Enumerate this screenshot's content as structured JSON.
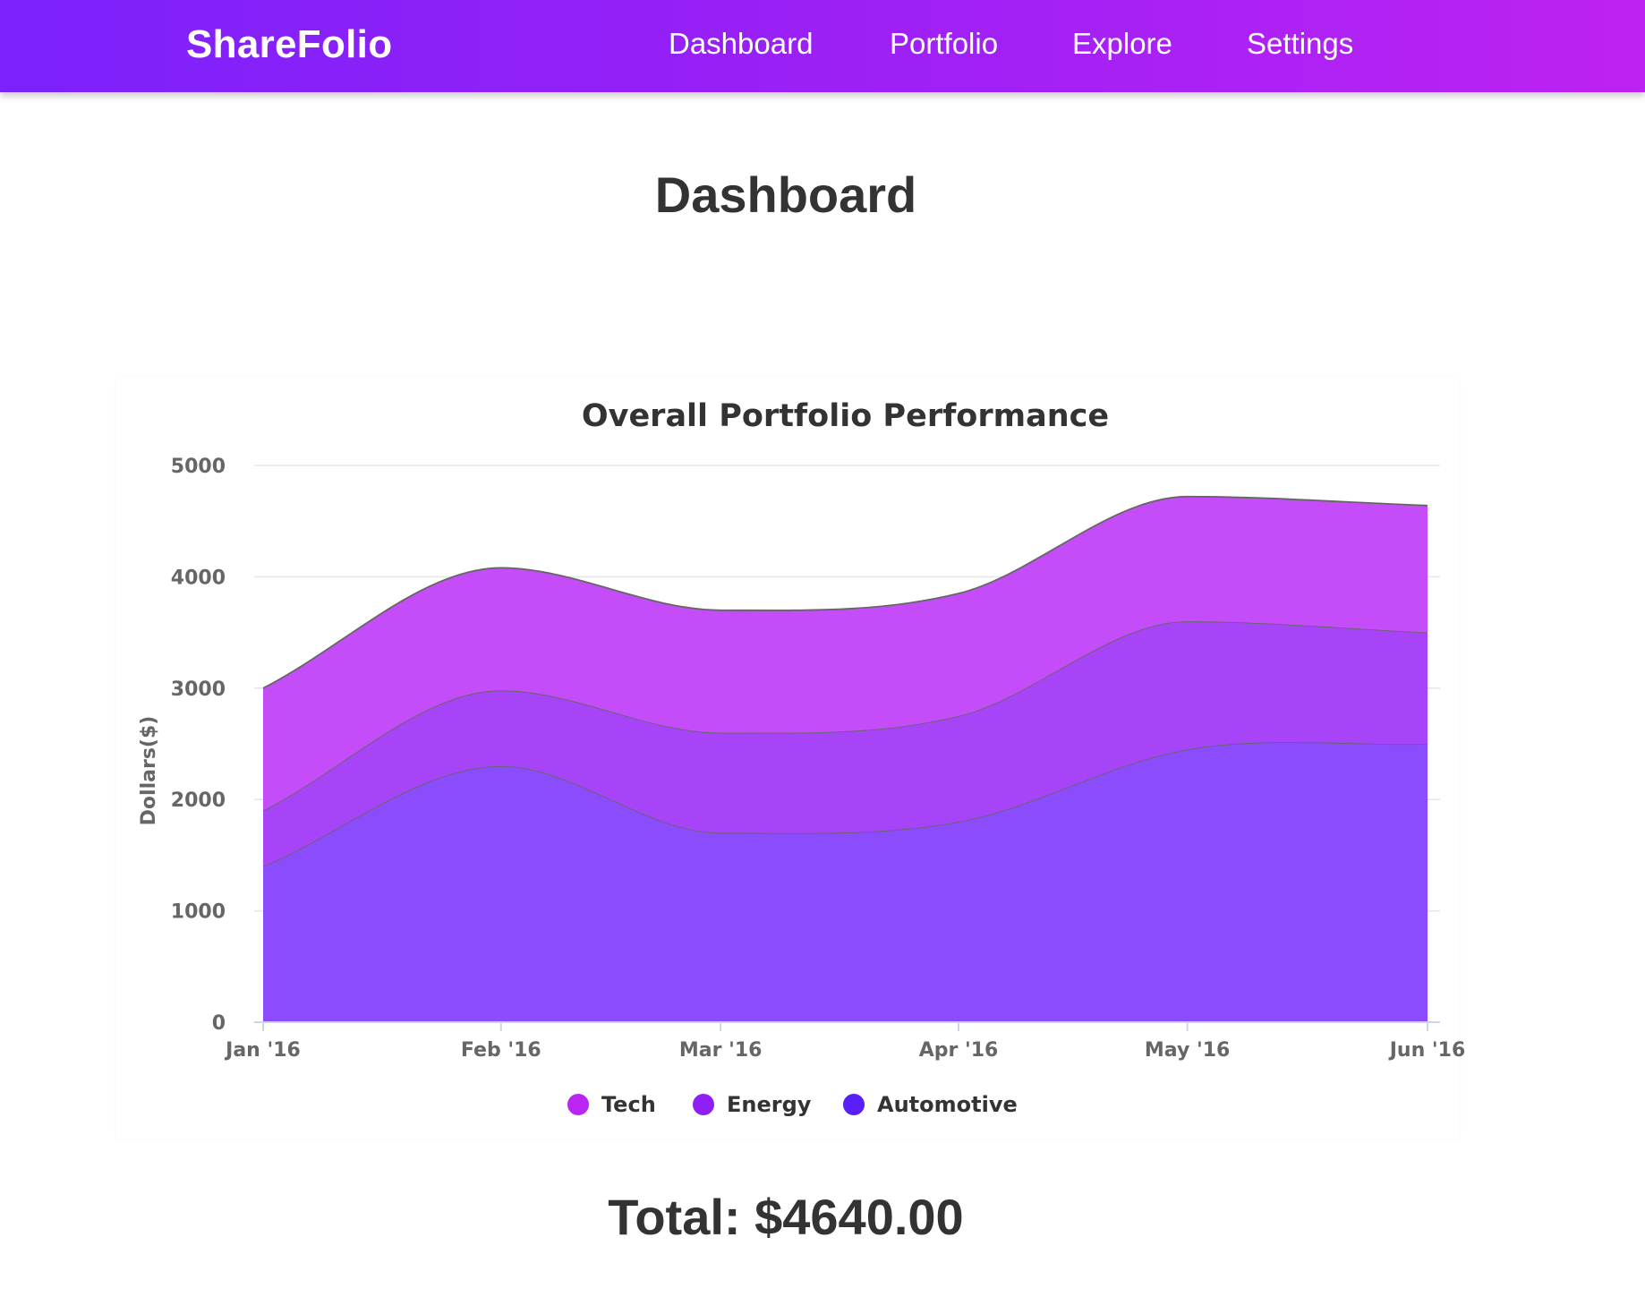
{
  "navbar": {
    "brand": "ShareFolio",
    "links": [
      {
        "label": "Dashboard"
      },
      {
        "label": "Portfolio"
      },
      {
        "label": "Explore"
      },
      {
        "label": "Settings"
      }
    ]
  },
  "page": {
    "title": "Dashboard",
    "total_label": "Total: $4640.00"
  },
  "chart_data": {
    "type": "area",
    "stacked": true,
    "title": "Overall Portfolio Performance",
    "xlabel": "",
    "ylabel": "Dollars($)",
    "categories": [
      "Jan '16",
      "Feb '16",
      "Mar '16",
      "Apr '16",
      "May '16",
      "Jun '16"
    ],
    "x_positions": [
      0,
      1.04,
      2,
      3.04,
      4.04,
      5.09
    ],
    "ylim": [
      0,
      5000
    ],
    "yticks": [
      0,
      1000,
      2000,
      3000,
      4000,
      5000
    ],
    "grid": true,
    "legend_position": "bottom-center",
    "series": [
      {
        "name": "Automotive",
        "color": "#5a1ef8",
        "values": [
          1400,
          2300,
          1700,
          1800,
          2450,
          2500
        ]
      },
      {
        "name": "Energy",
        "color": "#8e20f5",
        "values": [
          500,
          680,
          900,
          950,
          1150,
          1000
        ]
      },
      {
        "name": "Tech",
        "color": "#bb25f2",
        "values": [
          1100,
          1100,
          1100,
          1100,
          1120,
          1140
        ]
      }
    ],
    "legend_order": [
      "Tech",
      "Energy",
      "Automotive"
    ]
  }
}
